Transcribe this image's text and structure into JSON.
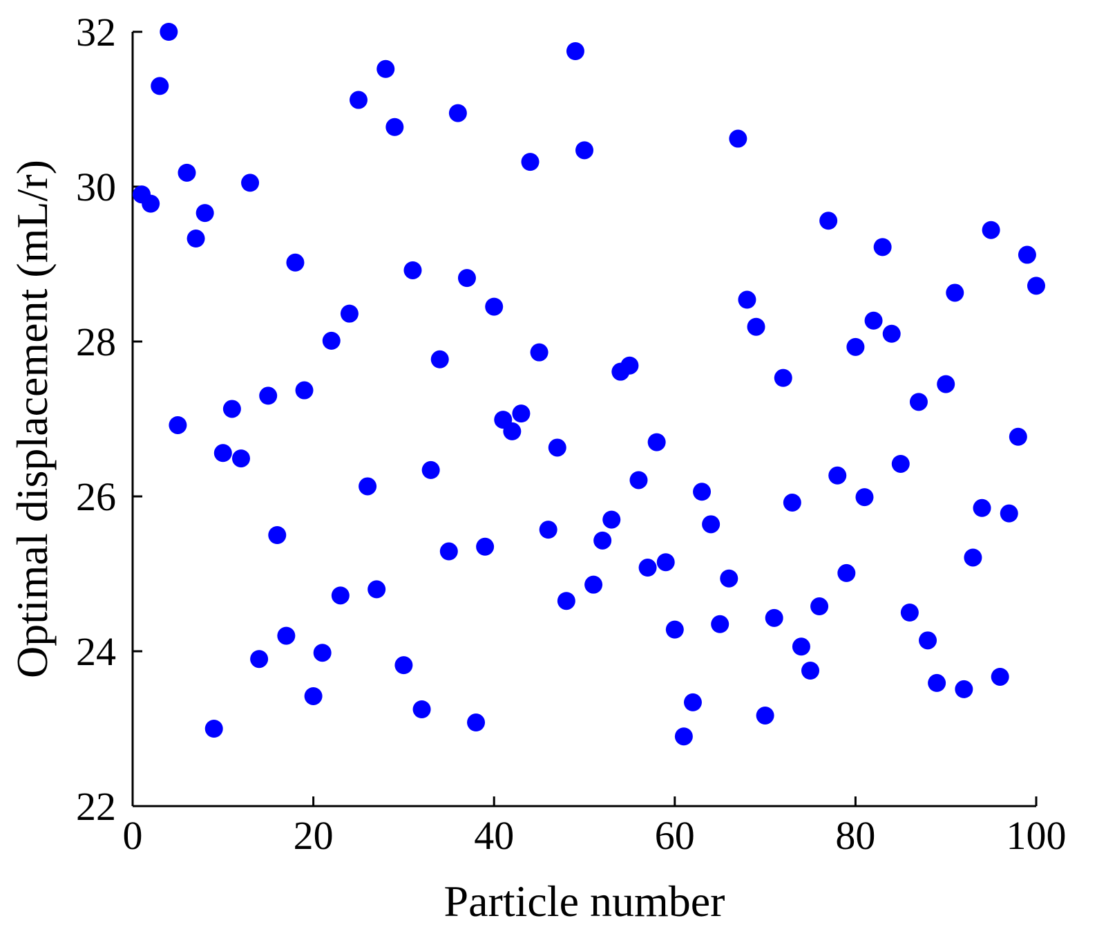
{
  "chart_data": {
    "type": "scatter",
    "title": "",
    "xlabel": "Particle number",
    "ylabel": "Optimal displacement (mL/r)",
    "xlim": [
      0,
      100
    ],
    "ylim": [
      22,
      32
    ],
    "xticks": [
      0,
      20,
      40,
      60,
      80,
      100
    ],
    "xtick_labels": [
      "0",
      "20",
      "40",
      "60",
      "80",
      "100"
    ],
    "yticks": [
      22,
      24,
      26,
      28,
      30,
      32
    ],
    "ytick_labels": [
      "22",
      "24",
      "26",
      "28",
      "30",
      "32"
    ],
    "grid": false,
    "legend": "none",
    "marker_color": "#0000ff",
    "series": [
      {
        "points": [
          [
            1,
            29.9
          ],
          [
            2,
            29.78
          ],
          [
            3,
            31.3
          ],
          [
            4,
            32.0
          ],
          [
            5,
            26.92
          ],
          [
            6,
            30.18
          ],
          [
            7,
            29.33
          ],
          [
            8,
            29.66
          ],
          [
            9,
            23.0
          ],
          [
            10,
            26.56
          ],
          [
            11,
            27.13
          ],
          [
            12,
            26.49
          ],
          [
            13,
            30.05
          ],
          [
            14,
            23.9
          ],
          [
            15,
            27.3
          ],
          [
            16,
            25.5
          ],
          [
            17,
            24.2
          ],
          [
            18,
            29.02
          ],
          [
            19,
            27.37
          ],
          [
            20,
            23.42
          ],
          [
            21,
            23.98
          ],
          [
            22,
            28.01
          ],
          [
            23,
            24.72
          ],
          [
            24,
            28.36
          ],
          [
            25,
            31.12
          ],
          [
            26,
            26.13
          ],
          [
            27,
            24.8
          ],
          [
            28,
            31.52
          ],
          [
            29,
            30.77
          ],
          [
            30,
            23.82
          ],
          [
            31,
            28.92
          ],
          [
            32,
            23.25
          ],
          [
            33,
            26.34
          ],
          [
            34,
            27.77
          ],
          [
            35,
            25.29
          ],
          [
            36,
            30.95
          ],
          [
            37,
            28.82
          ],
          [
            38,
            23.08
          ],
          [
            39,
            25.35
          ],
          [
            40,
            28.45
          ],
          [
            41,
            26.99
          ],
          [
            42,
            26.84
          ],
          [
            43,
            27.07
          ],
          [
            44,
            30.32
          ],
          [
            45,
            27.86
          ],
          [
            46,
            25.57
          ],
          [
            47,
            26.63
          ],
          [
            48,
            24.65
          ],
          [
            49,
            31.75
          ],
          [
            50,
            30.47
          ],
          [
            51,
            24.86
          ],
          [
            52,
            25.43
          ],
          [
            53,
            25.7
          ],
          [
            54,
            27.61
          ],
          [
            55,
            27.69
          ],
          [
            56,
            26.21
          ],
          [
            57,
            25.08
          ],
          [
            58,
            26.7
          ],
          [
            59,
            25.15
          ],
          [
            60,
            24.28
          ],
          [
            61,
            22.9
          ],
          [
            62,
            23.34
          ],
          [
            63,
            26.06
          ],
          [
            64,
            25.64
          ],
          [
            65,
            24.35
          ],
          [
            66,
            24.94
          ],
          [
            67,
            30.62
          ],
          [
            68,
            28.54
          ],
          [
            69,
            28.19
          ],
          [
            70,
            23.17
          ],
          [
            71,
            24.43
          ],
          [
            72,
            27.53
          ],
          [
            73,
            25.92
          ],
          [
            74,
            24.06
          ],
          [
            75,
            23.75
          ],
          [
            76,
            24.58
          ],
          [
            77,
            29.56
          ],
          [
            78,
            26.27
          ],
          [
            79,
            25.01
          ],
          [
            80,
            27.93
          ],
          [
            81,
            25.99
          ],
          [
            82,
            28.27
          ],
          [
            83,
            29.22
          ],
          [
            84,
            28.1
          ],
          [
            85,
            26.42
          ],
          [
            86,
            24.5
          ],
          [
            87,
            27.22
          ],
          [
            88,
            24.14
          ],
          [
            89,
            23.59
          ],
          [
            90,
            27.45
          ],
          [
            92,
            23.51
          ],
          [
            91,
            28.63
          ],
          [
            93,
            25.21
          ],
          [
            94,
            25.85
          ],
          [
            95,
            29.44
          ],
          [
            96,
            23.67
          ],
          [
            97,
            25.78
          ],
          [
            98,
            26.77
          ],
          [
            99,
            29.12
          ],
          [
            100,
            28.72
          ]
        ]
      }
    ]
  }
}
